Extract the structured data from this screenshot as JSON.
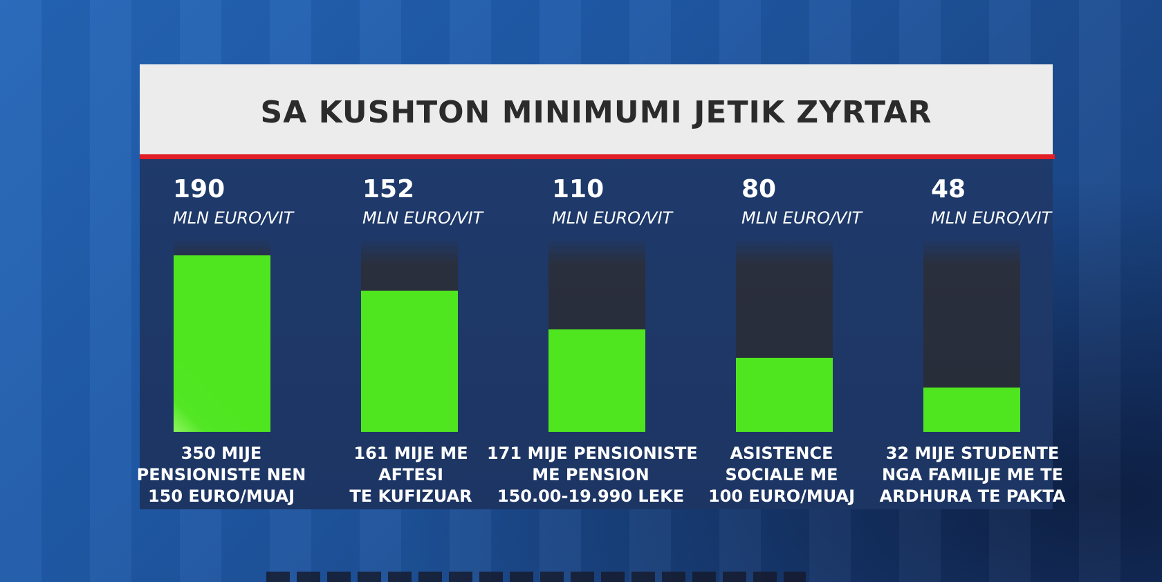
{
  "chart_data": {
    "type": "bar",
    "title": "SA KUSHTON MINIMUMI JETIK ZYRTAR",
    "unit": "MLN EURO/VIT",
    "ylim": [
      0,
      190
    ],
    "values": [
      190,
      152,
      110,
      80,
      48
    ],
    "value_labels": [
      "190",
      "152",
      "110",
      "80",
      "48"
    ],
    "categories": [
      [
        "350 MIJE",
        "PENSIONISTE NEN",
        "150 EURO/MUAJ"
      ],
      [
        "161 MIJE ME",
        "AFTESI",
        "TE KUFIZUAR"
      ],
      [
        "171 MIJE PENSIONISTE",
        "ME PENSION",
        "150.00-19.990 LEKE"
      ],
      [
        "ASISTENCE",
        "SOCIALE ME",
        "100 EURO/MUAJ"
      ],
      [
        "32 MIJE STUDENTE",
        "NGA FAMILJE ME TE",
        "ARDHURA TE PAKTA"
      ]
    ],
    "colors": {
      "bar": "#4fe620",
      "track": "#2a2f3d",
      "accent_line": "#e01f26",
      "header_bg": "#ececec"
    }
  }
}
